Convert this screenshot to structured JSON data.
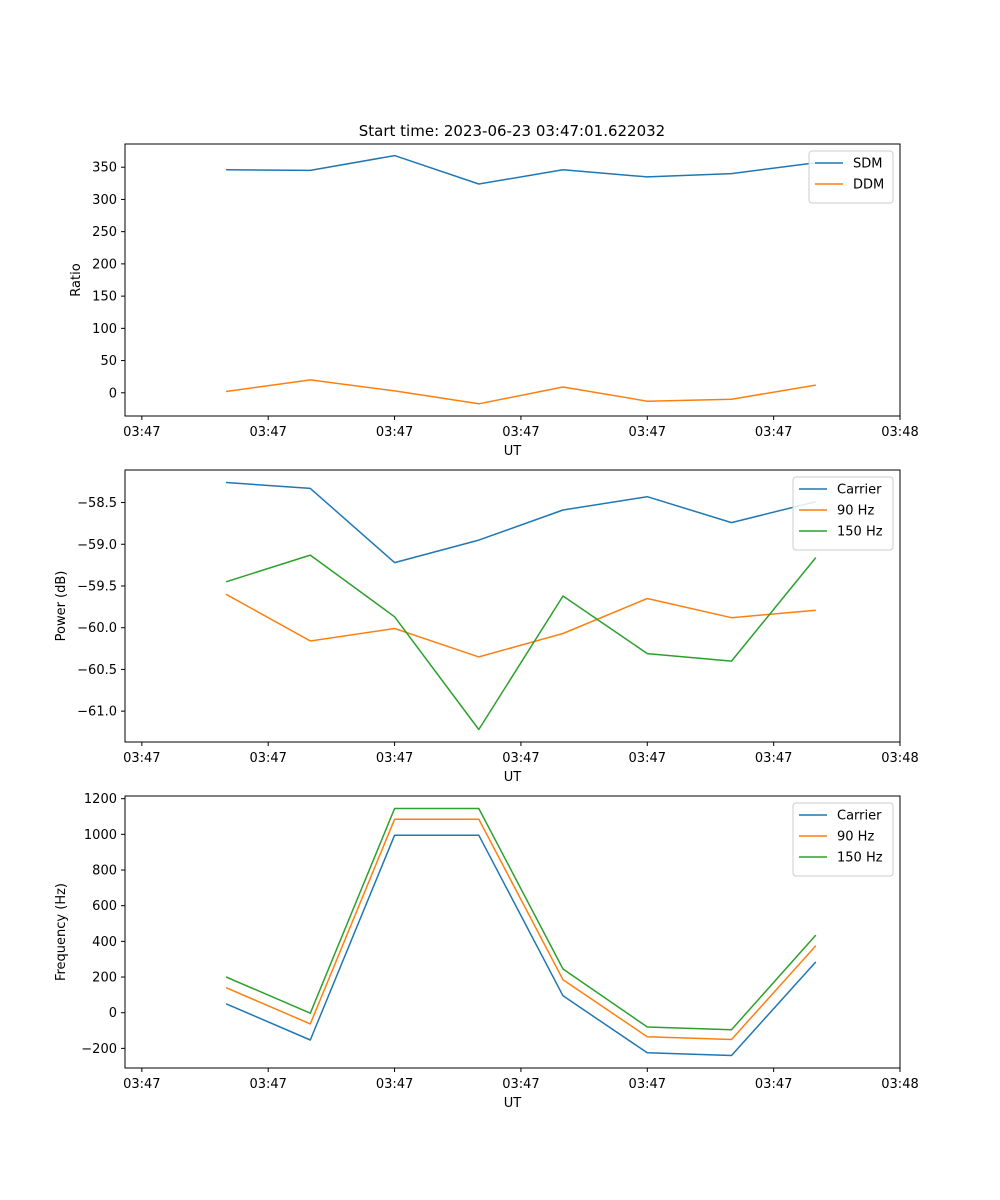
{
  "figure": {
    "title": "Start time: 2023-06-23 03:47:01.622032"
  },
  "chart_data": [
    {
      "type": "line",
      "xlabel": "UT",
      "ylabel": "Ratio",
      "x_tick_labels": [
        "03:47",
        "03:47",
        "03:47",
        "03:47",
        "03:47",
        "03:47",
        "03:48"
      ],
      "y_ticks": [
        0,
        50,
        100,
        150,
        200,
        250,
        300,
        350
      ],
      "ylim": [
        -36,
        386
      ],
      "xlim": [
        -0.2,
        9.2
      ],
      "legend_position": "top-right",
      "series": [
        {
          "name": "SDM",
          "color": "#1f77b4",
          "values": [
            346,
            345,
            368,
            324,
            346,
            335,
            340,
            357
          ]
        },
        {
          "name": "DDM",
          "color": "#ff7f0e",
          "values": [
            2,
            20,
            3,
            -17,
            9,
            -13,
            -10,
            12
          ]
        }
      ]
    },
    {
      "type": "line",
      "xlabel": "UT",
      "ylabel": "Power (dB)",
      "x_tick_labels": [
        "03:47",
        "03:47",
        "03:47",
        "03:47",
        "03:47",
        "03:47",
        "03:48"
      ],
      "y_ticks": [
        -61.0,
        -60.5,
        -60.0,
        -59.5,
        -59.0,
        -58.5
      ],
      "y_tick_labels": [
        "−61.0",
        "−60.5",
        "−60.0",
        "−59.5",
        "−59.0",
        "−58.5"
      ],
      "ylim": [
        -61.37,
        -58.11
      ],
      "xlim": [
        -0.2,
        9.2
      ],
      "legend_position": "top-right",
      "series": [
        {
          "name": "Carrier",
          "color": "#1f77b4",
          "values": [
            -58.26,
            -58.33,
            -59.22,
            -58.95,
            -58.59,
            -58.43,
            -58.74,
            -58.49
          ]
        },
        {
          "name": "90 Hz",
          "color": "#ff7f0e",
          "values": [
            -59.6,
            -60.16,
            -60.01,
            -60.35,
            -60.07,
            -59.65,
            -59.88,
            -59.79
          ]
        },
        {
          "name": "150 Hz",
          "color": "#2ca02c",
          "values": [
            -59.45,
            -59.13,
            -59.87,
            -61.22,
            -59.62,
            -60.31,
            -60.4,
            -59.16
          ]
        }
      ]
    },
    {
      "type": "line",
      "xlabel": "UT",
      "ylabel": "Frequency (Hz)",
      "x_tick_labels": [
        "03:47",
        "03:47",
        "03:47",
        "03:47",
        "03:47",
        "03:47",
        "03:48"
      ],
      "y_ticks": [
        -200,
        0,
        200,
        400,
        600,
        800,
        1000,
        1200
      ],
      "y_tick_labels": [
        "−200",
        "0",
        "200",
        "400",
        "600",
        "800",
        "1000",
        "1200"
      ],
      "ylim": [
        -310,
        1215
      ],
      "xlim": [
        -0.2,
        9.2
      ],
      "legend_position": "top-right",
      "series": [
        {
          "name": "Carrier",
          "color": "#1f77b4",
          "values": [
            50,
            -153,
            995,
            995,
            95,
            -225,
            -240,
            285
          ]
        },
        {
          "name": "90 Hz",
          "color": "#ff7f0e",
          "values": [
            140,
            -63,
            1085,
            1085,
            185,
            -135,
            -150,
            375
          ]
        },
        {
          "name": "150 Hz",
          "color": "#2ca02c",
          "values": [
            200,
            -3,
            1145,
            1145,
            245,
            -80,
            -95,
            435
          ]
        }
      ]
    }
  ]
}
